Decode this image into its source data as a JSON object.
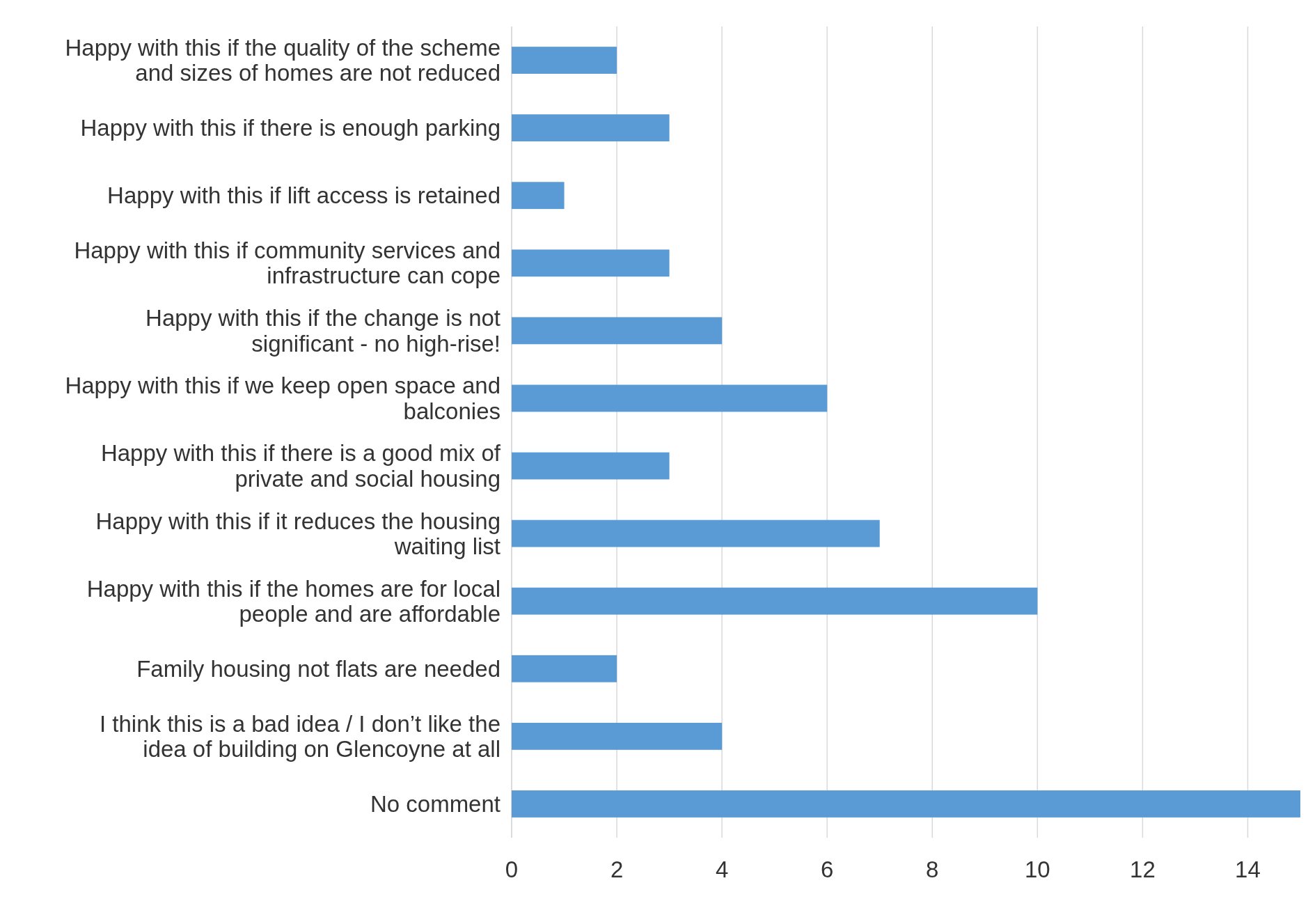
{
  "chart_data": {
    "type": "bar",
    "orientation": "horizontal",
    "categories": [
      "Happy with this if the quality of the scheme and sizes of homes are not reduced",
      "Happy with this if there is enough parking",
      "Happy with this if lift access is retained",
      "Happy with this if community services and infrastructure can cope",
      "Happy with this if the change is not significant - no high-rise!",
      "Happy with this if we keep open space and balconies",
      "Happy with this if there is a good mix of private and social housing",
      "Happy with this if it reduces the housing waiting list",
      "Happy with this if the homes are for local people and are affordable",
      "Family housing not flats are needed",
      "I think this is a bad idea / I don’t like the idea of building on Glencoyne at all",
      "No comment"
    ],
    "values": [
      2,
      3,
      1,
      3,
      4,
      6,
      3,
      7,
      10,
      2,
      4,
      15
    ],
    "color": "#5b9bd5",
    "xlim": [
      0,
      15
    ],
    "xticks": [
      0,
      2,
      4,
      6,
      8,
      10,
      12,
      14
    ],
    "grid": "x"
  }
}
